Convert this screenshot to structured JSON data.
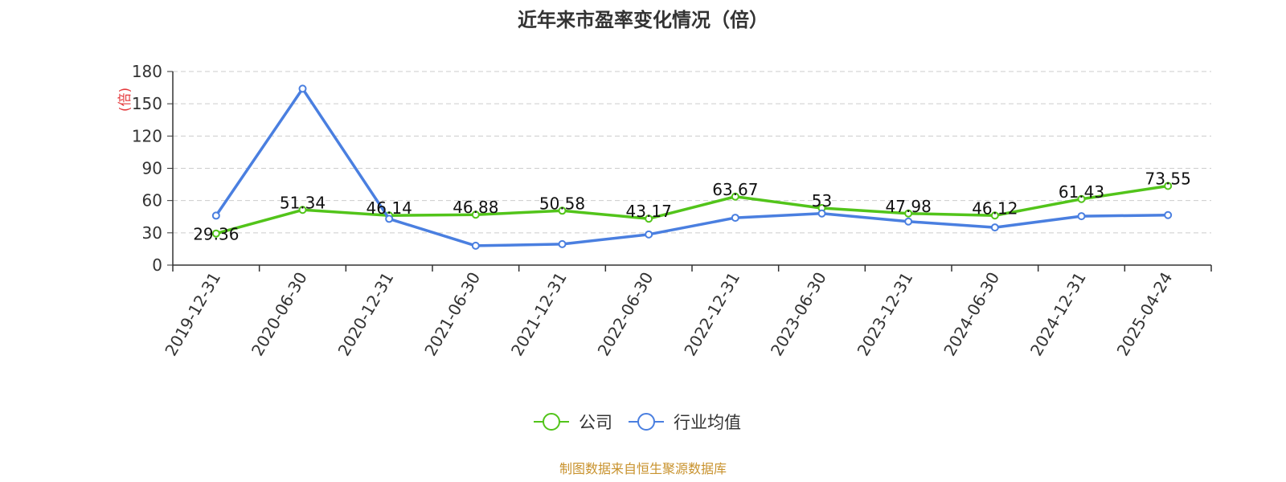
{
  "chart_data": {
    "type": "line",
    "title": "近年来市盈率变化情况（倍）",
    "ylabel": "(倍)",
    "categories": [
      "2019-12-31",
      "2020-06-30",
      "2020-12-31",
      "2021-06-30",
      "2021-12-31",
      "2022-06-30",
      "2022-12-31",
      "2023-06-30",
      "2023-12-31",
      "2024-06-30",
      "2024-12-31",
      "2025-04-24"
    ],
    "ylim": [
      0,
      180
    ],
    "yticks": [
      0,
      30,
      60,
      90,
      120,
      150,
      180
    ],
    "grid": true,
    "legend_position": "bottom-center",
    "series": [
      {
        "name": "公司",
        "color": "#52c41a",
        "show_labels": true,
        "values": [
          29.36,
          51.34,
          46.14,
          46.88,
          50.58,
          43.17,
          63.67,
          53,
          47.98,
          46.12,
          61.43,
          73.55
        ]
      },
      {
        "name": "行业均值",
        "color": "#4a7fe0",
        "show_labels": false,
        "values": [
          46,
          164,
          43,
          18,
          19.5,
          28.5,
          44,
          48,
          40.5,
          35,
          45.5,
          46.5
        ]
      }
    ]
  },
  "source": "制图数据来自恒生聚源数据库"
}
